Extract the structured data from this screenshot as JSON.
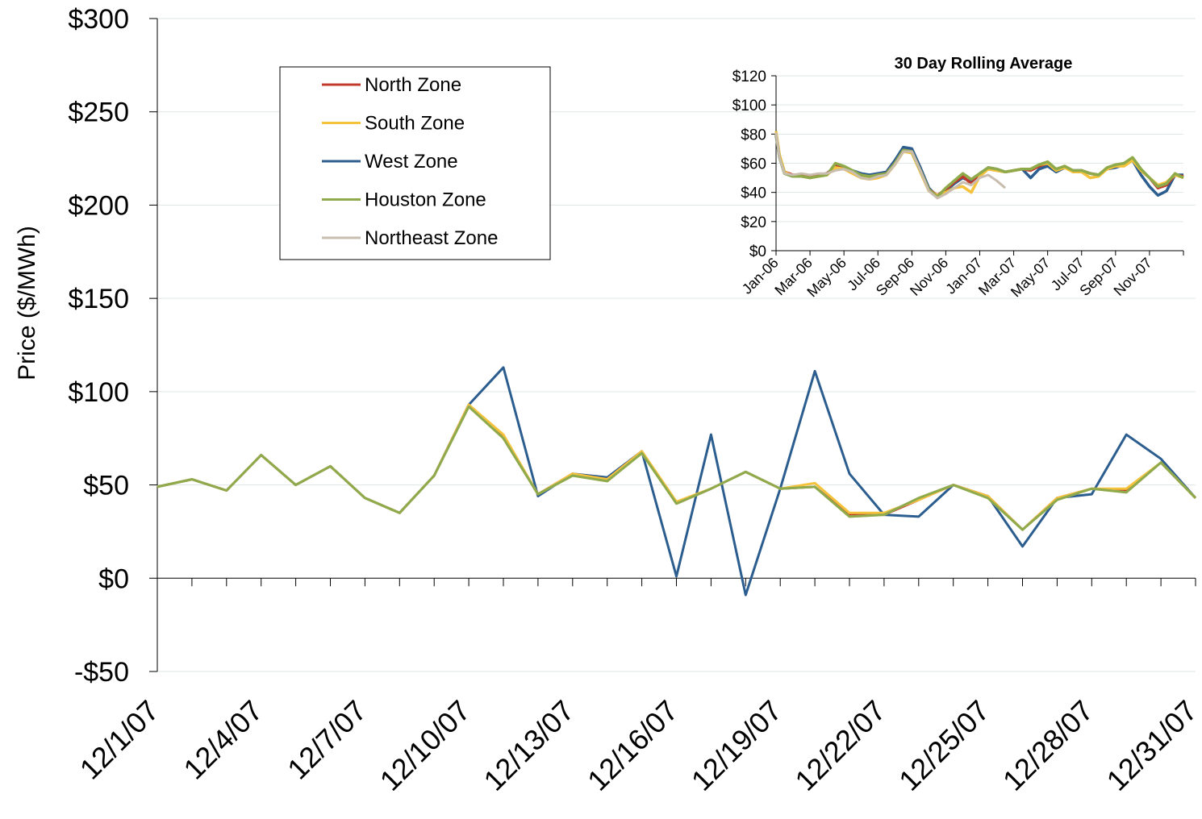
{
  "chart_data": [
    {
      "type": "line",
      "title": "",
      "xlabel": "",
      "ylabel": "Price ($/MWh)",
      "ylim": [
        -50,
        300
      ],
      "yticks": [
        -50,
        0,
        50,
        100,
        150,
        200,
        250,
        300
      ],
      "ytick_labels": [
        "-$50",
        "$0",
        "$50",
        "$100",
        "$150",
        "$200",
        "$250",
        "$300"
      ],
      "grid": "horizontal",
      "legend": "top-left",
      "categories": [
        "12/1/07",
        "12/2/07",
        "12/3/07",
        "12/4/07",
        "12/5/07",
        "12/6/07",
        "12/7/07",
        "12/8/07",
        "12/9/07",
        "12/10/07",
        "12/11/07",
        "12/12/07",
        "12/13/07",
        "12/14/07",
        "12/15/07",
        "12/16/07",
        "12/17/07",
        "12/18/07",
        "12/19/07",
        "12/20/07",
        "12/21/07",
        "12/22/07",
        "12/23/07",
        "12/24/07",
        "12/25/07",
        "12/26/07",
        "12/27/07",
        "12/28/07",
        "12/29/07",
        "12/30/07",
        "12/31/07"
      ],
      "tick_labels": [
        "12/1/07",
        "12/4/07",
        "12/7/07",
        "12/10/07",
        "12/13/07",
        "12/16/07",
        "12/19/07",
        "12/22/07",
        "12/25/07",
        "12/28/07",
        "12/31/07"
      ],
      "series": [
        {
          "name": "North Zone",
          "color": "#c0392b",
          "values": [
            49,
            53,
            47,
            66,
            50,
            60,
            43,
            35,
            55,
            93,
            76,
            45,
            56,
            53,
            68,
            40,
            48,
            57,
            48,
            49,
            34,
            34,
            42,
            50,
            44,
            26,
            43,
            48,
            47,
            62,
            43
          ]
        },
        {
          "name": "South Zone",
          "color": "#f5c33b",
          "values": [
            49,
            53,
            47,
            66,
            50,
            60,
            43,
            35,
            55,
            93,
            77,
            45,
            56,
            53,
            68,
            41,
            48,
            57,
            48,
            51,
            35,
            35,
            42,
            50,
            44,
            26,
            43,
            48,
            48,
            62,
            43
          ]
        },
        {
          "name": "West Zone",
          "color": "#2c5d8f",
          "values": [
            49,
            53,
            47,
            66,
            50,
            60,
            43,
            35,
            55,
            93,
            113,
            44,
            56,
            54,
            68,
            1,
            77,
            -9,
            48,
            111,
            56,
            34,
            33,
            50,
            44,
            17,
            43,
            45,
            77,
            64,
            43
          ]
        },
        {
          "name": "Houston Zone",
          "color": "#8faa4a",
          "values": [
            49,
            53,
            47,
            66,
            50,
            60,
            43,
            35,
            55,
            92,
            75,
            45,
            55,
            52,
            67,
            40,
            48,
            57,
            48,
            49,
            33,
            34,
            43,
            50,
            43,
            26,
            42,
            48,
            46,
            62,
            43
          ]
        },
        {
          "name": "Northeast Zone",
          "color": "#c9bdb0",
          "values": [
            49,
            53,
            47,
            66,
            50,
            60,
            43,
            35,
            55,
            92,
            75,
            45,
            55,
            52,
            67,
            40,
            48,
            57,
            48,
            49,
            33,
            34,
            43,
            50,
            43,
            26,
            42,
            48,
            46,
            62,
            43
          ]
        }
      ]
    },
    {
      "type": "line",
      "title": "30 Day Rolling Average",
      "xlabel": "",
      "ylabel": "",
      "ylim": [
        0,
        120
      ],
      "yticks": [
        0,
        20,
        40,
        60,
        80,
        100,
        120
      ],
      "ytick_labels": [
        "$0",
        "$20",
        "$40",
        "$60",
        "$80",
        "$100",
        "$120"
      ],
      "grid": "horizontal",
      "tick_labels": [
        "Jan-06",
        "Mar-06",
        "May-06",
        "Jul-06",
        "Sep-06",
        "Nov-06",
        "Jan-07",
        "Mar-07",
        "May-07",
        "Jul-07",
        "Sep-07",
        "Nov-07"
      ],
      "x_range": [
        0,
        24
      ],
      "series": [
        {
          "name": "North Zone",
          "color": "#c0392b",
          "x": [
            0,
            0.2,
            0.5,
            1,
            1.5,
            2,
            2.5,
            3,
            3.5,
            4,
            4.5,
            5,
            5.5,
            6,
            6.5,
            7,
            7.5,
            8,
            8.5,
            9,
            9.5,
            10,
            10.5,
            11,
            11.5,
            12,
            12.5,
            13,
            13.5,
            14,
            14.5,
            15,
            15.5,
            16,
            16.5,
            17,
            17.5,
            18,
            18.5,
            19,
            19.5,
            20,
            20.5,
            21,
            21.5,
            22,
            22.5,
            23,
            23.5,
            24
          ],
          "values": [
            80,
            65,
            54,
            52,
            52,
            51,
            52,
            53,
            58,
            56,
            54,
            52,
            51,
            52,
            53,
            60,
            69,
            68,
            55,
            42,
            38,
            42,
            47,
            51,
            46,
            52,
            56,
            55,
            54,
            55,
            56,
            55,
            58,
            60,
            55,
            58,
            54,
            55,
            53,
            52,
            56,
            58,
            59,
            63,
            55,
            50,
            43,
            45,
            52,
            51
          ]
        },
        {
          "name": "South Zone",
          "color": "#f5c33b",
          "x": [
            0,
            0.2,
            0.5,
            1,
            1.5,
            2,
            2.5,
            3,
            3.5,
            4,
            4.5,
            5,
            5.5,
            6,
            6.5,
            7,
            7.5,
            8,
            8.5,
            9,
            9.5,
            10,
            10.5,
            11,
            11.5,
            12,
            12.5,
            13,
            13.5,
            14,
            14.5,
            15,
            15.5,
            16,
            16.5,
            17,
            17.5,
            18,
            18.5,
            19,
            19.5,
            20,
            20.5,
            21,
            21.5,
            22,
            22.5,
            23,
            23.5,
            24
          ],
          "values": [
            82,
            66,
            54,
            51,
            51,
            50,
            51,
            52,
            57,
            56,
            53,
            50,
            49,
            50,
            52,
            59,
            68,
            67,
            54,
            41,
            38,
            40,
            43,
            44,
            40,
            51,
            56,
            55,
            54,
            55,
            56,
            56,
            59,
            60,
            55,
            57,
            54,
            54,
            50,
            51,
            56,
            58,
            58,
            62,
            55,
            50,
            45,
            47,
            52,
            50
          ]
        },
        {
          "name": "West Zone",
          "color": "#2c5d8f",
          "x": [
            0,
            0.2,
            0.5,
            1,
            1.5,
            2,
            2.5,
            3,
            3.5,
            4,
            4.5,
            5,
            5.5,
            6,
            6.5,
            7,
            7.5,
            8,
            8.5,
            9,
            9.5,
            10,
            10.5,
            11,
            11.5,
            12,
            12.5,
            13,
            13.5,
            14,
            14.5,
            15,
            15.5,
            16,
            16.5,
            17,
            17.5,
            18,
            18.5,
            19,
            19.5,
            20,
            20.5,
            21,
            21.5,
            22,
            22.5,
            23,
            23.5,
            24
          ],
          "values": [
            79,
            64,
            53,
            51,
            52,
            51,
            52,
            53,
            58,
            57,
            55,
            53,
            52,
            53,
            54,
            62,
            71,
            70,
            57,
            43,
            37,
            41,
            46,
            50,
            47,
            53,
            57,
            56,
            54,
            55,
            56,
            50,
            56,
            58,
            54,
            57,
            55,
            55,
            53,
            52,
            56,
            57,
            59,
            62,
            52,
            44,
            38,
            41,
            52,
            52
          ]
        },
        {
          "name": "Houston Zone",
          "color": "#8faa4a",
          "x": [
            0,
            0.2,
            0.5,
            1,
            1.5,
            2,
            2.5,
            3,
            3.5,
            4,
            4.5,
            5,
            5.5,
            6,
            6.5,
            7,
            7.5,
            8,
            8.5,
            9,
            9.5,
            10,
            10.5,
            11,
            11.5,
            12,
            12.5,
            13,
            13.5,
            14,
            14.5,
            15,
            15.5,
            16,
            16.5,
            17,
            17.5,
            18,
            18.5,
            19,
            19.5,
            20,
            20.5,
            21,
            21.5,
            22,
            22.5,
            23,
            23.5,
            24
          ],
          "values": [
            80,
            64,
            53,
            51,
            51,
            50,
            51,
            52,
            60,
            58,
            55,
            52,
            51,
            52,
            53,
            60,
            69,
            68,
            55,
            42,
            37,
            43,
            48,
            53,
            49,
            53,
            57,
            56,
            54,
            55,
            56,
            56,
            59,
            61,
            56,
            58,
            55,
            55,
            53,
            52,
            57,
            59,
            60,
            64,
            56,
            50,
            44,
            46,
            53,
            50
          ]
        },
        {
          "name": "Northeast Zone",
          "color": "#c9bdb0",
          "x": [
            0,
            0.2,
            0.5,
            1,
            1.5,
            2,
            2.5,
            3,
            3.5,
            4,
            4.5,
            5,
            5.5,
            6,
            6.5,
            7,
            7.5,
            8,
            8.5,
            9,
            9.5,
            10,
            10.5,
            11,
            11.5,
            12,
            12.5,
            13,
            13.5
          ],
          "values": [
            81,
            64,
            53,
            52,
            53,
            52,
            53,
            53,
            55,
            56,
            54,
            50,
            49,
            51,
            52,
            59,
            68,
            68,
            55,
            41,
            36,
            39,
            43,
            47,
            45,
            50,
            52,
            48,
            43
          ]
        }
      ]
    }
  ]
}
